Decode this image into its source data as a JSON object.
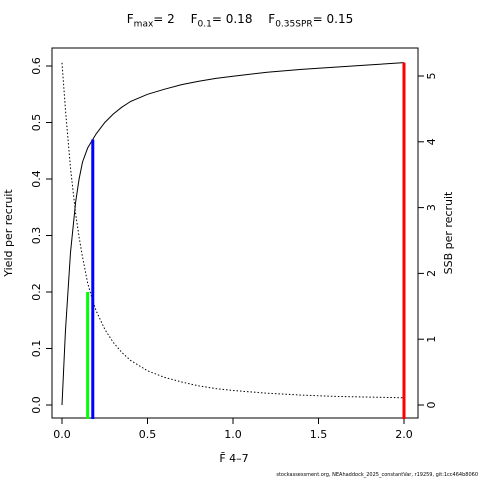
{
  "header": {
    "fmax_label": "F",
    "fmax_sub": "max",
    "fmax_value": "= 2",
    "f01_label": "F",
    "f01_sub": "0.1",
    "f01_value": "= 0.18",
    "fspr_label": "F",
    "fspr_sub": "0.35SPR",
    "fspr_value": "= 0.15"
  },
  "footer": {
    "text": "stockassessment.org, NEAhaddock_2025_constantVar, r19259, git:1cc464b8060"
  },
  "colors": {
    "ypr_line": "#000000",
    "ssb_line": "#000000",
    "fmax_bar": "#ff0000",
    "f01_bar": "#0000ff",
    "fspr_bar": "#00ff00"
  },
  "chart_data": {
    "type": "line",
    "xlabel": "F̄ 4–7",
    "ylabel_left": "Yield per recruit",
    "ylabel_right": "SSB per recruit",
    "xlim": [
      0,
      2
    ],
    "ylim_left": [
      0,
      0.6
    ],
    "ylim_right": [
      0,
      5
    ],
    "x_ticks": [
      "0.0",
      "0.5",
      "1.0",
      "1.5",
      "2.0"
    ],
    "y_ticks_left": [
      "0.0",
      "0.1",
      "0.2",
      "0.3",
      "0.4",
      "0.5",
      "0.6"
    ],
    "y_ticks_right": [
      "0",
      "1",
      "2",
      "3",
      "4",
      "5"
    ],
    "grid": false,
    "series": [
      {
        "name": "Yield per recruit",
        "axis": "left",
        "style": "solid",
        "x": [
          0.0,
          0.02,
          0.05,
          0.08,
          0.1,
          0.12,
          0.15,
          0.18,
          0.2,
          0.25,
          0.3,
          0.35,
          0.4,
          0.5,
          0.6,
          0.7,
          0.8,
          0.9,
          1.0,
          1.2,
          1.4,
          1.6,
          1.8,
          2.0
        ],
        "y": [
          0.0,
          0.13,
          0.27,
          0.36,
          0.4,
          0.43,
          0.455,
          0.47,
          0.48,
          0.5,
          0.515,
          0.527,
          0.537,
          0.55,
          0.559,
          0.567,
          0.573,
          0.578,
          0.582,
          0.589,
          0.594,
          0.598,
          0.602,
          0.606
        ]
      },
      {
        "name": "SSB per recruit",
        "axis": "right",
        "style": "dotted",
        "x": [
          0.0,
          0.02,
          0.05,
          0.08,
          0.1,
          0.12,
          0.15,
          0.18,
          0.2,
          0.25,
          0.3,
          0.35,
          0.4,
          0.5,
          0.6,
          0.7,
          0.8,
          0.9,
          1.0,
          1.2,
          1.4,
          1.6,
          1.8,
          2.0
        ],
        "y": [
          5.2,
          4.5,
          3.6,
          2.9,
          2.55,
          2.25,
          1.85,
          1.58,
          1.43,
          1.15,
          0.95,
          0.8,
          0.68,
          0.52,
          0.42,
          0.35,
          0.29,
          0.25,
          0.22,
          0.18,
          0.15,
          0.13,
          0.12,
          0.11
        ]
      }
    ],
    "reference_lines": [
      {
        "name": "Fmax",
        "x": 2.0,
        "y": 0.606,
        "color": "#ff0000"
      },
      {
        "name": "F0.1",
        "x": 0.18,
        "y": 0.47,
        "color": "#0000ff"
      },
      {
        "name": "F0.35SPR",
        "x": 0.15,
        "y": 0.2,
        "color": "#00ff00"
      }
    ]
  }
}
